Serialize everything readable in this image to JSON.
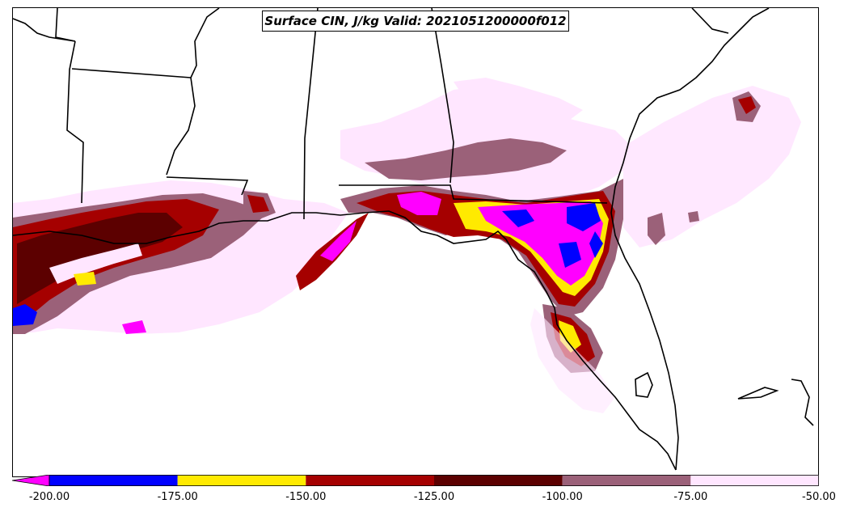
{
  "title": "Surface CIN, J/kg Valid: 2021051200000f012",
  "colorbar": {
    "ticks": [
      "-200.00",
      "-175.00",
      "-150.00",
      "-125.00",
      "-100.00",
      "-75.00",
      "-50.00"
    ],
    "bins": [
      {
        "from": -200,
        "to": -175,
        "color": "#0000ff"
      },
      {
        "from": -175,
        "to": -150,
        "color": "#ffea00"
      },
      {
        "from": -150,
        "to": -125,
        "color": "#a50000"
      },
      {
        "from": -125,
        "to": -100,
        "color": "#5c0000"
      },
      {
        "from": -100,
        "to": -75,
        "color": "#9b6179"
      },
      {
        "from": -75,
        "to": -50,
        "color": "#ffe6ff"
      }
    ],
    "underflow_color": "#ff00ff",
    "extend": "min"
  },
  "colors": {
    "magenta": "#ff00ff",
    "blue": "#0000ff",
    "yellow": "#ffea00",
    "red": "#a50000",
    "darkred": "#5c0000",
    "mauve": "#9b6179",
    "pink": "#ffe6ff"
  }
}
